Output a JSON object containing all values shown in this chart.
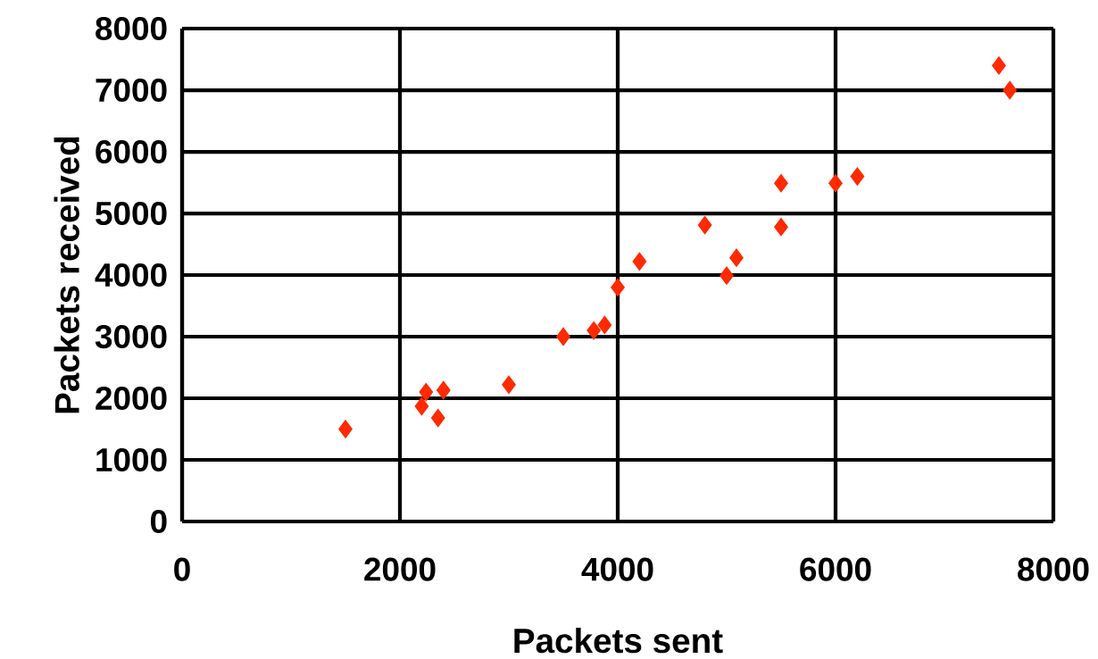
{
  "chart_data": {
    "type": "scatter",
    "xlabel": "Packets sent",
    "ylabel": "Packets received",
    "x": [
      1500,
      2200,
      2240,
      2350,
      2400,
      3000,
      3500,
      3780,
      3880,
      4000,
      4200,
      4800,
      5000,
      5090,
      5500,
      5500,
      6000,
      6200,
      7500,
      7600
    ],
    "values": [
      1500,
      1870,
      2100,
      1680,
      2130,
      2220,
      3000,
      3100,
      3190,
      3800,
      4220,
      4810,
      3990,
      4280,
      4780,
      5490,
      5490,
      5600,
      7400,
      7000
    ],
    "color": "#ff2a00",
    "marker": "diamond",
    "xlim": [
      0,
      8000
    ],
    "xticks": [
      0,
      2000,
      4000,
      6000,
      8000
    ],
    "ylim": [
      0,
      8000
    ],
    "yticks": [
      0,
      1000,
      2000,
      3000,
      4000,
      5000,
      6000,
      7000,
      8000
    ],
    "grid": true
  }
}
